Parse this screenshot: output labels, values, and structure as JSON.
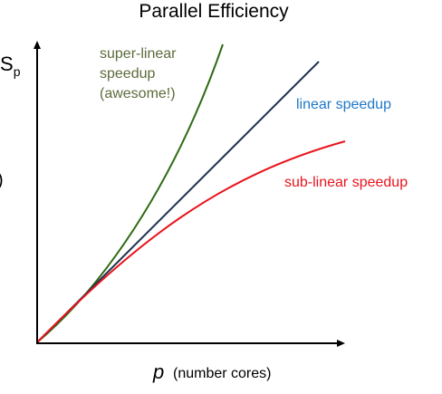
{
  "title": "Parallel Efficiency",
  "y_axis": {
    "symbol": "S",
    "subscript": "p",
    "edge_glyph": ")"
  },
  "x_axis": {
    "symbol": "p",
    "caption": "(number cores)"
  },
  "curves": {
    "super_linear": {
      "lines": [
        "super-linear",
        "speedup",
        "(awesome!)"
      ],
      "color": "#2e6b12",
      "label_color": "#5b6b3a"
    },
    "linear": {
      "label": "linear speedup",
      "color": "#1f3350",
      "label_color": "#1f78c8"
    },
    "sub_linear": {
      "label": "sub-linear speedup",
      "color": "#e8141c",
      "label_color": "#e8141c"
    }
  },
  "colors": {
    "axis": "#000000",
    "title": "#000000"
  }
}
